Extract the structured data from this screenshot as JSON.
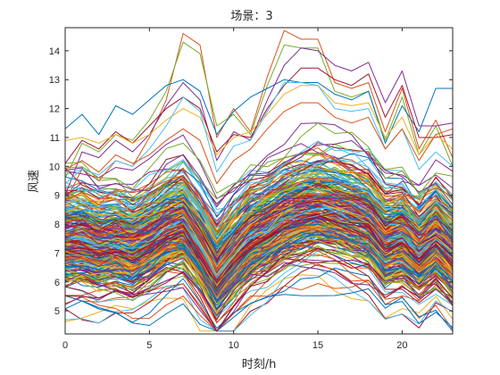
{
  "chart_data": {
    "type": "line",
    "title": "场景：3",
    "xlabel": "时刻/h",
    "ylabel": "风速",
    "xlim": [
      0,
      23
    ],
    "ylim": [
      4.2,
      14.8
    ],
    "xticks": [
      0,
      5,
      10,
      15,
      20
    ],
    "yticks": [
      5,
      6,
      7,
      8,
      9,
      10,
      11,
      12,
      13,
      14
    ],
    "grid": false,
    "legend": "none",
    "x": [
      0,
      1,
      2,
      3,
      4,
      5,
      6,
      7,
      8,
      9,
      10,
      11,
      12,
      13,
      14,
      15,
      16,
      17,
      18,
      19,
      20,
      21,
      22,
      23
    ],
    "base_profile": [
      7.5,
      7.5,
      7.3,
      7.4,
      7.2,
      7.5,
      7.9,
      8.1,
      7.3,
      6.3,
      7.0,
      7.6,
      7.9,
      8.3,
      8.5,
      8.6,
      8.5,
      8.3,
      8.1,
      7.4,
      7.6,
      7.1,
      7.6,
      7.0
    ],
    "series_count": 300,
    "series": [
      {
        "values": [
          8.8,
          9.9,
          9.5,
          10.2,
          10.0,
          11.0,
          12.3,
          14.6,
          14.2,
          11.0,
          12.0,
          11.2,
          13.1,
          14.7,
          14.4,
          14.4,
          12.9,
          12.7,
          12.9,
          11.2,
          12.7,
          10.6,
          11.6,
          10.3
        ]
      },
      {
        "values": [
          9.6,
          10.8,
          10.5,
          11.1,
          10.9,
          11.6,
          12.6,
          14.3,
          13.9,
          11.4,
          11.8,
          11.1,
          12.8,
          14.2,
          14.1,
          14.1,
          12.6,
          12.4,
          12.6,
          10.9,
          12.4,
          10.4,
          11.4,
          10.0
        ]
      },
      {
        "values": [
          11.3,
          11.8,
          11.1,
          12.1,
          11.8,
          12.3,
          12.8,
          13.0,
          12.6,
          11.1,
          11.9,
          12.4,
          12.7,
          13.0,
          12.9,
          12.9,
          12.5,
          12.3,
          12.6,
          10.8,
          12.1,
          11.2,
          12.7,
          12.7
        ]
      },
      {
        "values": [
          9.0,
          10.5,
          10.3,
          10.9,
          10.5,
          11.1,
          12.1,
          12.9,
          12.3,
          10.2,
          11.2,
          10.9,
          12.3,
          13.5,
          14.1,
          14.0,
          13.5,
          13.3,
          13.6,
          12.2,
          13.3,
          11.4,
          11.4,
          11.5
        ]
      },
      {
        "values": [
          10.1,
          10.9,
          10.6,
          11.2,
          10.8,
          11.4,
          12.0,
          12.4,
          12.0,
          10.5,
          11.1,
          11.0,
          12.0,
          12.8,
          13.4,
          13.4,
          13.0,
          12.8,
          13.2,
          11.7,
          12.8,
          11.0,
          11.0,
          11.1
        ]
      },
      {
        "values": [
          10.9,
          11.0,
          10.8,
          11.1,
          10.8,
          11.1,
          11.6,
          12.0,
          11.7,
          10.4,
          11.0,
          11.2,
          11.8,
          12.5,
          12.8,
          12.8,
          12.2,
          12.1,
          12.2,
          11.0,
          11.7,
          10.4,
          11.1,
          10.6
        ]
      },
      {
        "values": [
          9.4,
          9.9,
          9.7,
          10.2,
          10.0,
          10.6,
          11.4,
          12.4,
          11.9,
          9.8,
          10.7,
          10.9,
          11.9,
          12.9,
          12.9,
          12.8,
          12.0,
          11.9,
          12.0,
          10.6,
          11.3,
          9.9,
          10.5,
          10.0
        ]
      },
      {
        "values": [
          9.9,
          10.2,
          9.8,
          10.4,
          10.1,
          10.4,
          10.9,
          11.3,
          10.9,
          9.4,
          10.2,
          10.6,
          11.3,
          11.9,
          12.2,
          12.2,
          11.7,
          11.5,
          11.7,
          10.6,
          11.3,
          10.2,
          11.1,
          11.3
        ]
      }
    ]
  }
}
